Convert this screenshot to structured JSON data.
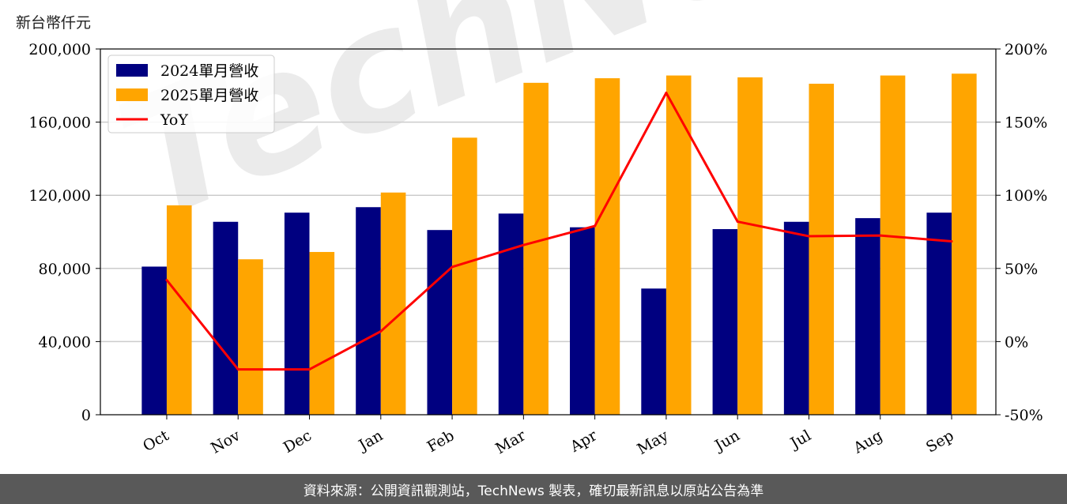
{
  "unit_label": "新台幣仟元",
  "watermark": "TechNews",
  "footer_text": "資料來源：公開資訊觀測站，TechNews 製表，確切最新訊息以原站公告為準",
  "colors": {
    "bar2024": "#000080",
    "bar2025": "#FFA500",
    "yoy": "#FF0000",
    "grid": "#cccccc"
  },
  "chart_data": {
    "type": "bar",
    "categories": [
      "Oct",
      "Nov",
      "Dec",
      "Jan",
      "Feb",
      "Mar",
      "Apr",
      "May",
      "Jun",
      "Jul",
      "Aug",
      "Sep"
    ],
    "series": [
      {
        "name": "2024單月營收",
        "axis": "left",
        "type": "bar",
        "values": [
          81000,
          105500,
          110500,
          113500,
          101000,
          110000,
          102500,
          69000,
          101500,
          105500,
          107500,
          110500
        ]
      },
      {
        "name": "2025單月營收",
        "axis": "left",
        "type": "bar",
        "values": [
          114500,
          85000,
          89000,
          121500,
          151500,
          181500,
          184000,
          185500,
          184500,
          181000,
          185500,
          186500
        ]
      },
      {
        "name": "YoY",
        "axis": "right",
        "type": "line",
        "values": [
          42,
          -19,
          -19,
          7,
          51,
          66,
          79,
          170,
          82,
          72,
          72.5,
          68.5
        ]
      }
    ],
    "left_axis": {
      "ylim": [
        0,
        200000
      ],
      "ticks": [
        "0",
        "40,000",
        "80,000",
        "120,000",
        "160,000",
        "200,000"
      ],
      "tick_values": [
        0,
        40000,
        80000,
        120000,
        160000,
        200000
      ]
    },
    "right_axis": {
      "ylim": [
        -50,
        200
      ],
      "ticks": [
        "-50%",
        "0%",
        "50%",
        "100%",
        "150%",
        "200%"
      ],
      "tick_values": [
        -50,
        0,
        50,
        100,
        150,
        200
      ]
    },
    "grid": true,
    "legend": "top-left"
  }
}
